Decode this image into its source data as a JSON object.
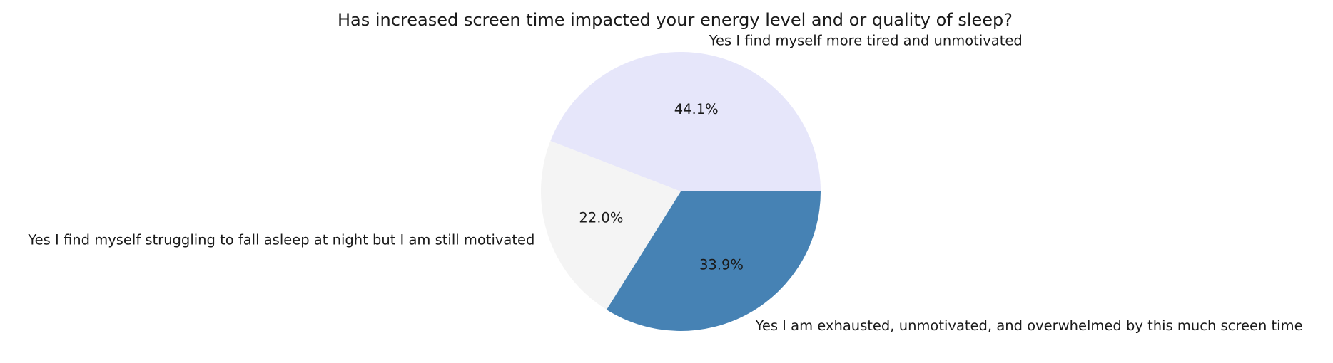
{
  "chart_data": {
    "type": "pie",
    "title": "Has increased screen time impacted your energy level and or quality of sleep?",
    "start_angle_deg": 0,
    "direction": "counterclockwise",
    "slices": [
      {
        "label": "Yes I find myself more tired and unmotivated",
        "value": 44.1,
        "pct_text": "44.1%",
        "color": "#e6e6fa"
      },
      {
        "label": "Yes I find myself struggling to fall asleep at night but I am still motivated",
        "value": 22.0,
        "pct_text": "22.0%",
        "color": "#f4f4f4"
      },
      {
        "label": "Yes I am exhausted, unmotivated, and overwhelmed by this much screen time",
        "value": 33.9,
        "pct_text": "33.9%",
        "color": "#4682b4"
      }
    ]
  }
}
